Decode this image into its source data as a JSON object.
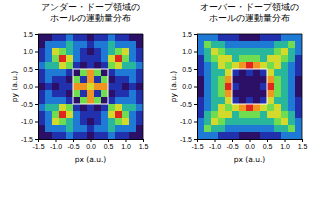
{
  "chart_data": [
    {
      "type": "heatmap",
      "title": [
        "アンダー・ドープ領域の",
        "ホールの運動量分布"
      ],
      "x_label": "px (a.u.)",
      "y_label": "py (a.u.)",
      "xlim": [
        -1.5,
        1.5
      ],
      "ylim": [
        -1.5,
        1.5
      ],
      "xticks": [
        -1.5,
        {
          "value": -1,
          "label": "-1.0"
        },
        -0.5,
        {
          "value": 0,
          "label": "0.0"
        },
        0.5,
        {
          "value": 1,
          "label": "1.0"
        },
        1.5
      ],
      "yticks": [
        -1.5,
        {
          "value": -1,
          "label": "-1.0"
        },
        -0.5,
        {
          "value": 0,
          "label": "0.0"
        },
        0.5,
        {
          "value": 1,
          "label": "1.0"
        },
        1.5
      ],
      "x": [
        -1.4,
        -1.2,
        -1.0,
        -0.8,
        -0.6,
        -0.4,
        -0.2,
        0,
        0.2,
        0.4,
        0.6,
        0.8,
        1.0,
        1.2,
        1.4
      ],
      "y": [
        1.4,
        1.2,
        1.0,
        0.8,
        0.6,
        0.4,
        0.2,
        0,
        -0.2,
        -0.4,
        -0.6,
        -0.8,
        -1.0,
        -1.2,
        -1.4
      ],
      "cells": [
        [
          2,
          2,
          3,
          3,
          4,
          3,
          3,
          2,
          3,
          3,
          4,
          3,
          3,
          2,
          2
        ],
        [
          2,
          4,
          4,
          4,
          5,
          4,
          4,
          3,
          4,
          4,
          5,
          4,
          4,
          4,
          2
        ],
        [
          3,
          4,
          7,
          6,
          5,
          4,
          3,
          2,
          3,
          4,
          5,
          6,
          7,
          4,
          3
        ],
        [
          3,
          4,
          6,
          9,
          7,
          4,
          3,
          3,
          3,
          4,
          7,
          9,
          6,
          4,
          3
        ],
        [
          4,
          5,
          5,
          7,
          6,
          3,
          2,
          3,
          2,
          3,
          6,
          7,
          5,
          5,
          4
        ],
        [
          3,
          4,
          4,
          4,
          3,
          2,
          6,
          8,
          6,
          2,
          3,
          4,
          4,
          4,
          3
        ],
        [
          3,
          4,
          3,
          3,
          2,
          6,
          3,
          8,
          3,
          6,
          2,
          3,
          3,
          4,
          3
        ],
        [
          2,
          3,
          2,
          3,
          3,
          8,
          8,
          7,
          8,
          8,
          3,
          3,
          2,
          3,
          2
        ],
        [
          3,
          4,
          3,
          3,
          2,
          6,
          3,
          8,
          3,
          6,
          2,
          3,
          3,
          4,
          3
        ],
        [
          3,
          4,
          4,
          4,
          3,
          2,
          6,
          8,
          6,
          2,
          3,
          4,
          4,
          4,
          3
        ],
        [
          4,
          5,
          5,
          7,
          6,
          3,
          2,
          3,
          2,
          3,
          6,
          7,
          5,
          5,
          4
        ],
        [
          3,
          4,
          6,
          9,
          7,
          4,
          3,
          3,
          3,
          4,
          7,
          9,
          6,
          4,
          3
        ],
        [
          3,
          4,
          7,
          6,
          5,
          4,
          3,
          2,
          3,
          4,
          5,
          6,
          7,
          4,
          3
        ],
        [
          2,
          4,
          4,
          4,
          5,
          4,
          4,
          3,
          4,
          4,
          5,
          4,
          4,
          4,
          2
        ],
        [
          2,
          2,
          3,
          3,
          4,
          3,
          3,
          2,
          3,
          3,
          4,
          3,
          3,
          2,
          2
        ]
      ],
      "annotations": [
        {
          "shape": "rect",
          "x": [
            -0.5,
            0.5
          ],
          "y": [
            -0.5,
            0.5
          ],
          "color": "#ffffff"
        }
      ]
    },
    {
      "type": "heatmap",
      "title": [
        "オーバー・ドープ領域の",
        "ホールの運動量分布"
      ],
      "x_label": "px (a.u.)",
      "y_label": "py (a.u.)",
      "xlim": [
        -1.5,
        1.5
      ],
      "ylim": [
        -1.5,
        1.5
      ],
      "xticks": [
        -1.5,
        {
          "value": -1,
          "label": "-1.0"
        },
        -0.5,
        {
          "value": 0,
          "label": "0.0"
        },
        0.5,
        {
          "value": 1,
          "label": "1.0"
        },
        1.5
      ],
      "yticks": [
        -1.5,
        {
          "value": -1,
          "label": "-1.0"
        },
        -0.5,
        {
          "value": 0,
          "label": "0.0"
        },
        0.5,
        {
          "value": 1,
          "label": "1.0"
        },
        1.5
      ],
      "x": [
        -1.4,
        -1.2,
        -1.0,
        -0.8,
        -0.6,
        -0.4,
        -0.2,
        0,
        0.2,
        0.4,
        0.6,
        0.8,
        1.0,
        1.2,
        1.4
      ],
      "y": [
        1.4,
        1.2,
        1.0,
        0.8,
        0.6,
        0.4,
        0.2,
        0,
        -0.2,
        -0.4,
        -0.6,
        -0.8,
        -1.0,
        -1.2,
        -1.4
      ],
      "cells": [
        [
          4,
          4,
          4,
          3,
          3,
          3,
          2,
          2,
          2,
          3,
          3,
          3,
          4,
          4,
          4
        ],
        [
          4,
          6,
          5,
          5,
          4,
          4,
          4,
          4,
          4,
          4,
          4,
          5,
          5,
          6,
          4
        ],
        [
          4,
          5,
          7,
          6,
          5,
          5,
          5,
          5,
          5,
          5,
          5,
          6,
          7,
          5,
          4
        ],
        [
          3,
          5,
          6,
          7,
          7,
          5,
          6,
          6,
          6,
          5,
          7,
          7,
          6,
          5,
          3
        ],
        [
          3,
          4,
          5,
          7,
          6,
          7,
          8,
          9,
          8,
          7,
          6,
          7,
          5,
          4,
          3
        ],
        [
          3,
          4,
          5,
          5,
          7,
          3,
          2,
          3,
          2,
          3,
          7,
          5,
          5,
          4,
          3
        ],
        [
          2,
          4,
          5,
          6,
          8,
          2,
          2,
          2,
          2,
          2,
          8,
          6,
          5,
          4,
          2
        ],
        [
          2,
          4,
          5,
          6,
          9,
          3,
          2,
          2,
          2,
          3,
          9,
          6,
          5,
          4,
          2
        ],
        [
          2,
          4,
          5,
          6,
          8,
          2,
          2,
          2,
          2,
          2,
          8,
          6,
          5,
          4,
          2
        ],
        [
          3,
          4,
          5,
          5,
          7,
          3,
          2,
          3,
          2,
          3,
          7,
          5,
          5,
          4,
          3
        ],
        [
          3,
          4,
          5,
          7,
          6,
          7,
          8,
          9,
          8,
          7,
          6,
          7,
          5,
          4,
          3
        ],
        [
          3,
          5,
          6,
          7,
          7,
          5,
          6,
          6,
          6,
          5,
          7,
          7,
          6,
          5,
          3
        ],
        [
          4,
          5,
          7,
          6,
          5,
          5,
          5,
          5,
          5,
          5,
          5,
          6,
          7,
          5,
          4
        ],
        [
          4,
          6,
          5,
          5,
          4,
          4,
          4,
          4,
          4,
          4,
          4,
          5,
          5,
          6,
          4
        ],
        [
          4,
          4,
          4,
          3,
          3,
          3,
          2,
          2,
          2,
          3,
          3,
          3,
          4,
          4,
          4
        ]
      ],
      "annotations": [
        {
          "shape": "rect",
          "x": [
            -0.5,
            0.5
          ],
          "y": [
            -0.5,
            0.5
          ],
          "color": "#ffffff"
        }
      ]
    }
  ]
}
